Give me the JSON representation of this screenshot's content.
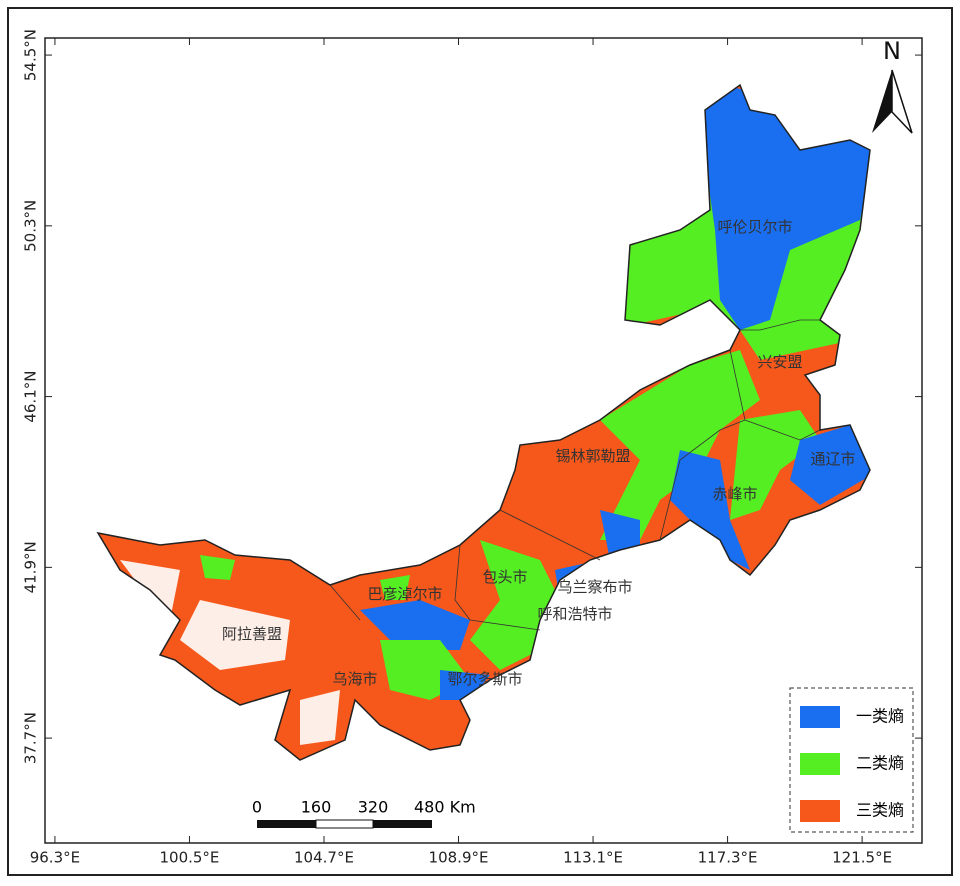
{
  "map": {
    "xlim": [
      95.99,
      123.37
    ],
    "ylim": [
      35.12,
      54.92
    ],
    "xticks": [
      {
        "value": 96.3,
        "label": "96.3°E"
      },
      {
        "value": 100.5,
        "label": "100.5°E"
      },
      {
        "value": 104.7,
        "label": "104.7°E"
      },
      {
        "value": 108.9,
        "label": "108.9°E"
      },
      {
        "value": 113.1,
        "label": "113.1°E"
      },
      {
        "value": 117.3,
        "label": "117.3°E"
      },
      {
        "value": 121.5,
        "label": "121.5°E"
      }
    ],
    "yticks": [
      {
        "value": 37.7,
        "label": "37.7°N"
      },
      {
        "value": 41.9,
        "label": "41.9°N"
      },
      {
        "value": 46.1,
        "label": "46.1°N"
      },
      {
        "value": 50.3,
        "label": "50.3°N"
      },
      {
        "value": 54.5,
        "label": "54.5°N"
      }
    ],
    "regions": [
      "呼伦贝尔市",
      "兴安盟",
      "锡林郭勒盟",
      "通辽市",
      "赤峰市",
      "乌兰察布市",
      "包头市",
      "呼和浩特市",
      "巴彦淖尔市",
      "阿拉善盟",
      "乌海市",
      "鄂尔多斯市"
    ],
    "legend": [
      {
        "label": "一类熵",
        "color": "#1a6ef0"
      },
      {
        "label": "二类熵",
        "color": "#55ee22"
      },
      {
        "label": "三类熵",
        "color": "#f5581a"
      }
    ],
    "scale_bar": [
      "0",
      "160",
      "320",
      "480 Km"
    ],
    "north": "N"
  }
}
